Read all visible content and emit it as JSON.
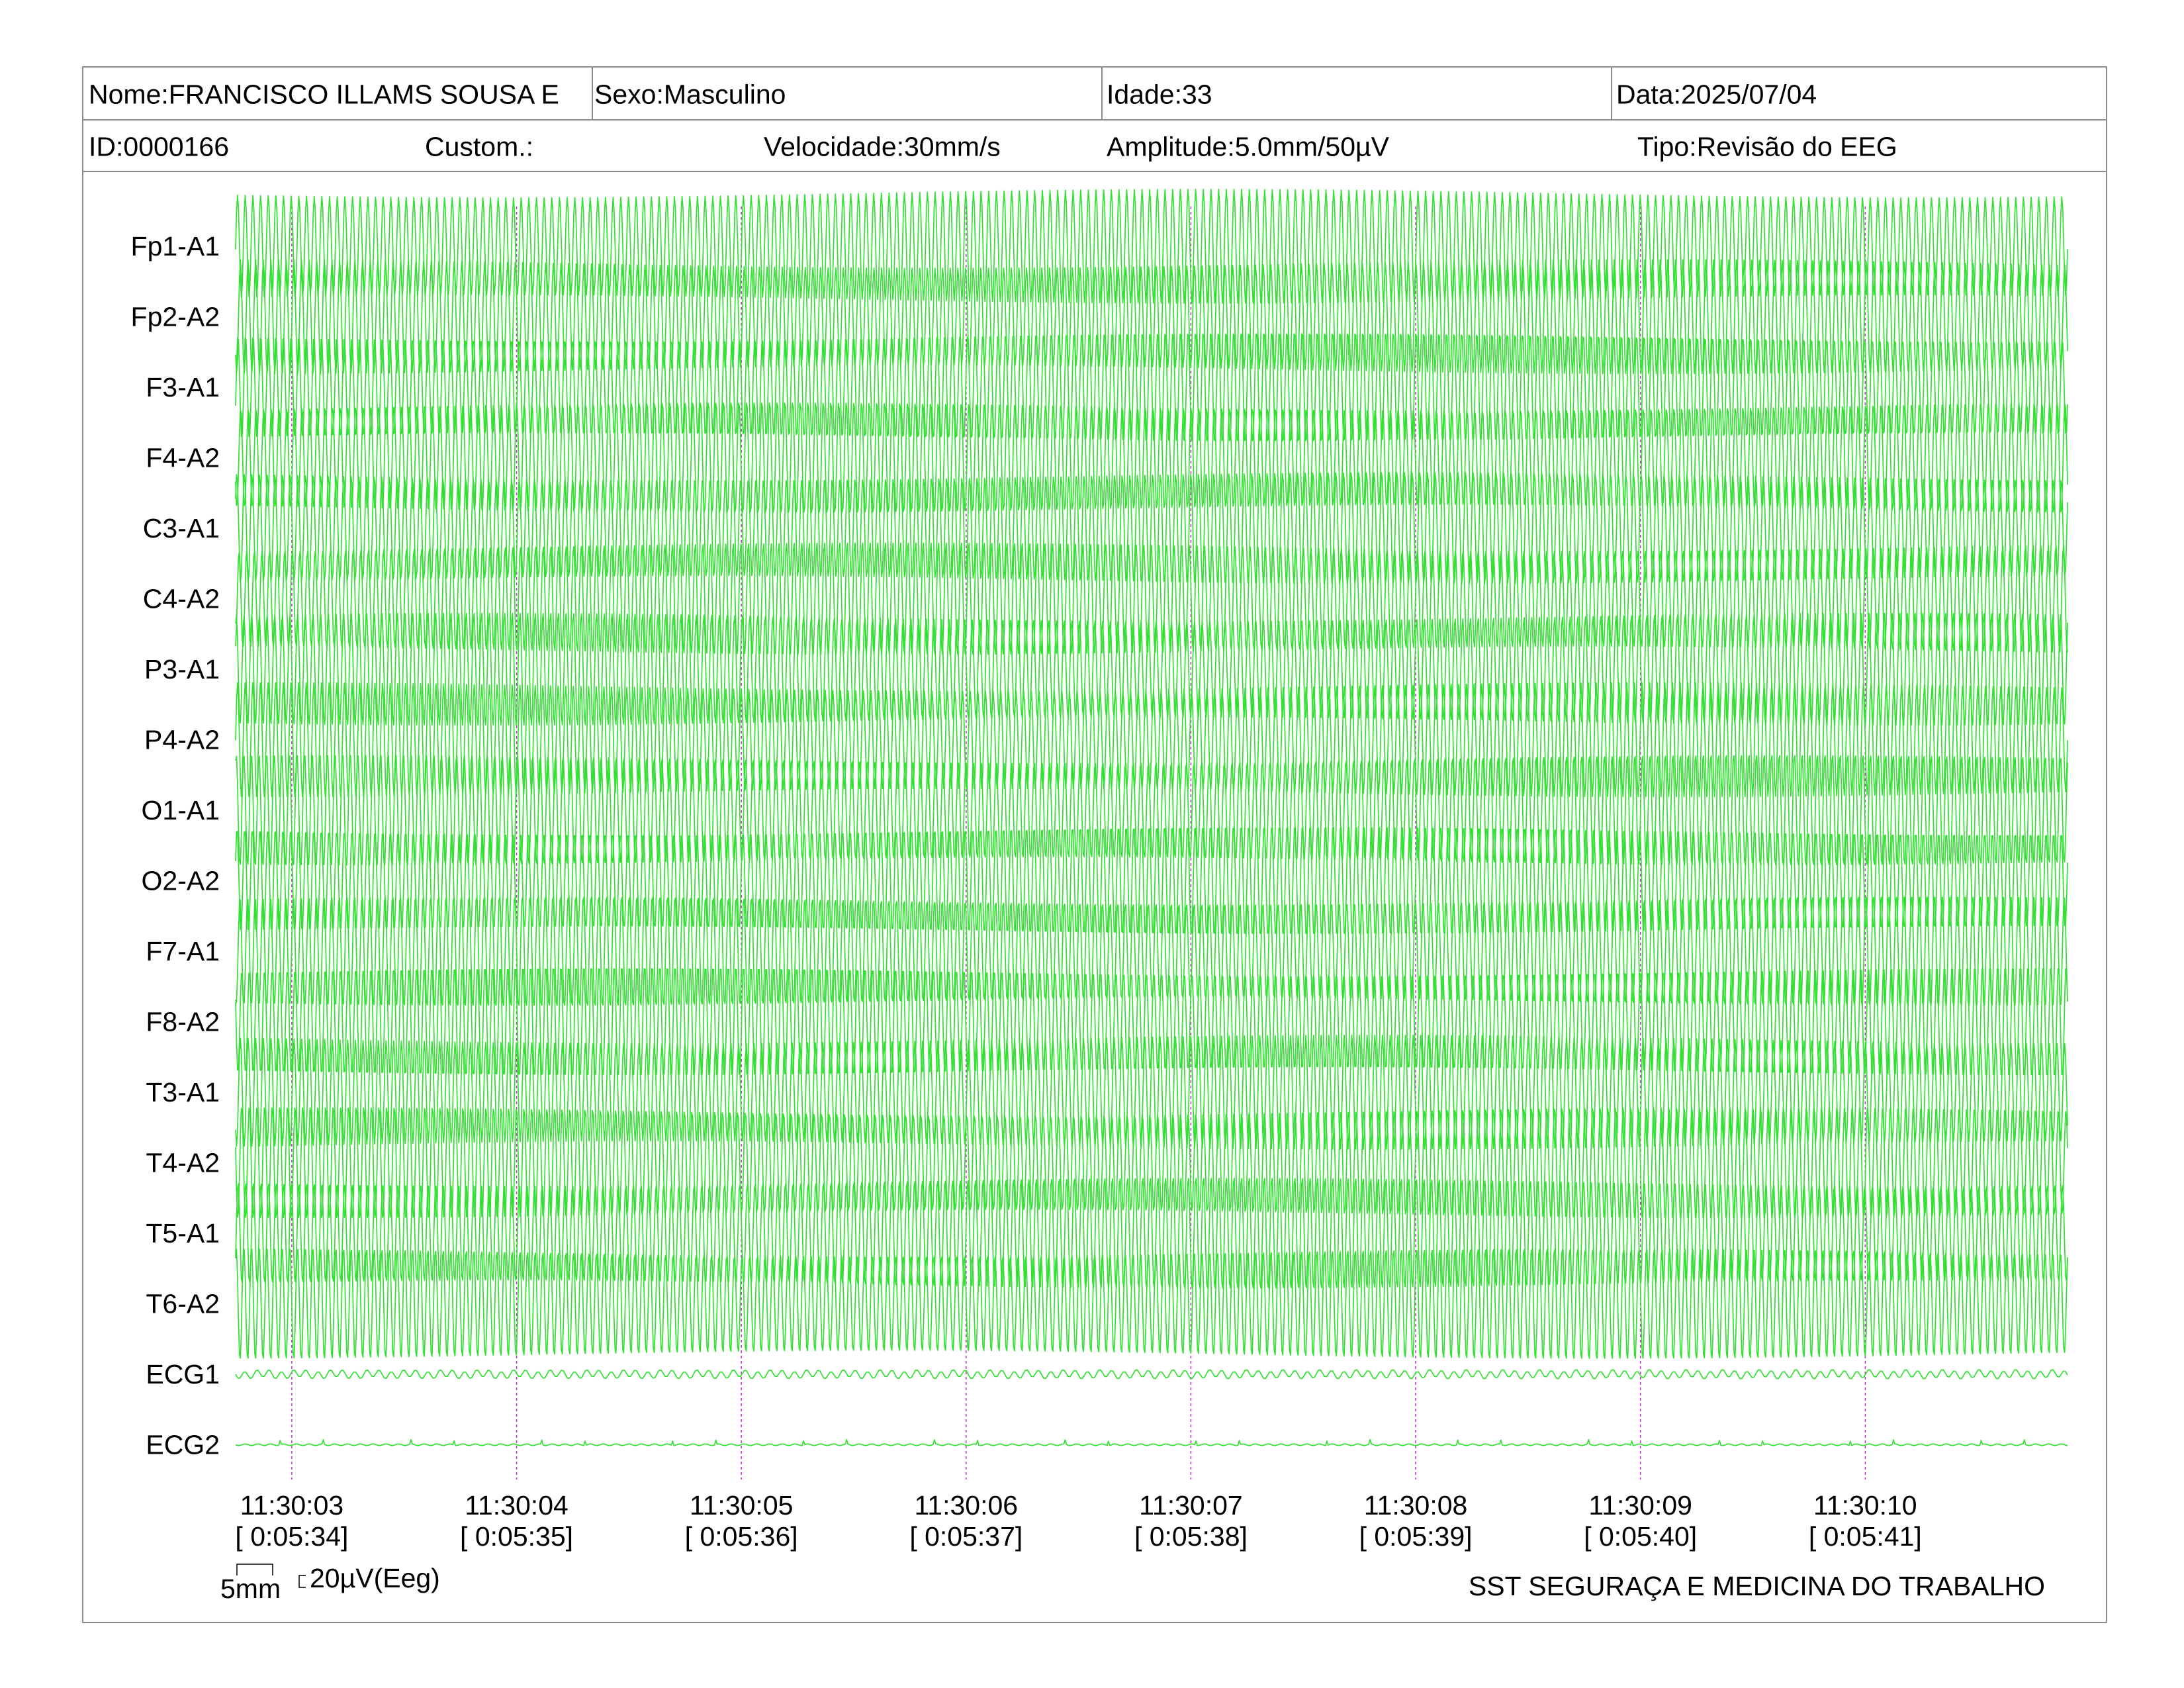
{
  "header": {
    "nome": "Nome:FRANCISCO ILLAMS SOUSA E",
    "sexo": "Sexo:Masculino",
    "idade": "Idade:33",
    "data": "Data:2025/07/04",
    "id": "ID:0000166",
    "custom": "Custom.:",
    "velocidade": "Velocidade:30mm/s",
    "amplitude": "Amplitude:5.0mm/50µV",
    "tipo": "Tipo:Revisão do EEG"
  },
  "footer": {
    "scale_time": "5mm",
    "scale_amp": "20µV(Eeg)",
    "clinic": "SST SEGURAÇA E MEDICINA DO TRABALHO"
  },
  "colors": {
    "trace": "#33e033",
    "marker": "#cc33cc",
    "border": "#8c8c8c"
  },
  "chart_data": {
    "type": "line",
    "title": "",
    "xlabel": "",
    "ylabel": "",
    "grid": false,
    "legend": "none",
    "time_start": "11:30:02.75",
    "time_end": "11:30:10.9",
    "ticks": [
      {
        "time": "11:30:03",
        "elapsed": "[ 0:05:34]"
      },
      {
        "time": "11:30:04",
        "elapsed": "[ 0:05:35]"
      },
      {
        "time": "11:30:05",
        "elapsed": "[ 0:05:36]"
      },
      {
        "time": "11:30:06",
        "elapsed": "[ 0:05:37]"
      },
      {
        "time": "11:30:07",
        "elapsed": "[ 0:05:38]"
      },
      {
        "time": "11:30:08",
        "elapsed": "[ 0:05:39]"
      },
      {
        "time": "11:30:09",
        "elapsed": "[ 0:05:40]"
      },
      {
        "time": "11:30:10",
        "elapsed": "[ 0:05:41]"
      }
    ],
    "series": [
      {
        "name": "Fp1-A1",
        "kind": "eeg",
        "amplitude_uv": 42
      },
      {
        "name": "Fp2-A2",
        "kind": "eeg",
        "amplitude_uv": 42
      },
      {
        "name": "F3-A1",
        "kind": "eeg",
        "amplitude_uv": 42
      },
      {
        "name": "F4-A2",
        "kind": "eeg",
        "amplitude_uv": 42
      },
      {
        "name": "C3-A1",
        "kind": "eeg",
        "amplitude_uv": 42
      },
      {
        "name": "C4-A2",
        "kind": "eeg",
        "amplitude_uv": 42
      },
      {
        "name": "P3-A1",
        "kind": "eeg",
        "amplitude_uv": 42
      },
      {
        "name": "P4-A2",
        "kind": "eeg",
        "amplitude_uv": 42
      },
      {
        "name": "O1-A1",
        "kind": "eeg",
        "amplitude_uv": 42
      },
      {
        "name": "O2-A2",
        "kind": "eeg",
        "amplitude_uv": 42
      },
      {
        "name": "F7-A1",
        "kind": "eeg",
        "amplitude_uv": 42
      },
      {
        "name": "F8-A2",
        "kind": "eeg",
        "amplitude_uv": 42
      },
      {
        "name": "T3-A1",
        "kind": "eeg",
        "amplitude_uv": 42
      },
      {
        "name": "T4-A2",
        "kind": "eeg",
        "amplitude_uv": 42
      },
      {
        "name": "T5-A1",
        "kind": "eeg",
        "amplitude_uv": 42
      },
      {
        "name": "T6-A2",
        "kind": "eeg",
        "amplitude_uv": 42
      },
      {
        "name": "ECG1",
        "kind": "ecg",
        "amplitude_uv": 3
      },
      {
        "name": "ECG2",
        "kind": "ecg",
        "amplitude_uv": 1
      }
    ]
  }
}
